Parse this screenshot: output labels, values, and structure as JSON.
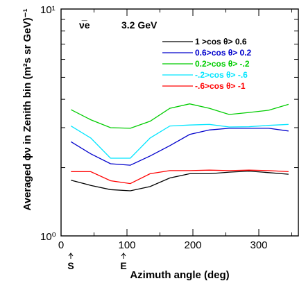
{
  "chart_data": {
    "type": "line",
    "title": "3.2 GeV",
    "flavor": "ν̅e",
    "xlabel": "Azimuth angle (deg)",
    "ylabel": "Averaged ϕν in Zenith bin  (m²s sr GeV)⁻¹",
    "xlim": [
      0,
      360
    ],
    "ylim": [
      1,
      10
    ],
    "yscale": "log",
    "grid": false,
    "legend_position": "top-right",
    "x_ticks": [
      "0",
      "100",
      "200",
      "300"
    ],
    "y_ticks": [
      "10⁰",
      "10¹"
    ],
    "markers": [
      {
        "x": 15,
        "label": "S"
      },
      {
        "x": 105,
        "label": "E"
      }
    ],
    "x": [
      15,
      45,
      75,
      105,
      135,
      165,
      195,
      225,
      255,
      285,
      315,
      345
    ],
    "series": [
      {
        "name": "1 >cos  θ> 0.6",
        "color": "#000000",
        "values": [
          1.76,
          1.67,
          1.6,
          1.58,
          1.65,
          1.8,
          1.88,
          1.88,
          1.91,
          1.93,
          1.9,
          1.87
        ]
      },
      {
        "name": "0.6>cos  θ> 0.2",
        "color": "#0000cc",
        "values": [
          2.6,
          2.3,
          2.08,
          2.05,
          2.25,
          2.5,
          2.8,
          2.93,
          2.98,
          2.98,
          2.98,
          2.9
        ]
      },
      {
        "name": "0.2>cos  θ> -.2",
        "color": "#00cc00",
        "values": [
          3.6,
          3.25,
          3.0,
          2.98,
          3.2,
          3.65,
          3.82,
          3.65,
          3.43,
          3.5,
          3.58,
          3.8
        ]
      },
      {
        "name": "-.2>cos  θ> -.6",
        "color": "#00e5ff",
        "values": [
          3.05,
          2.7,
          2.2,
          2.2,
          2.7,
          3.05,
          3.08,
          3.1,
          3.02,
          3.03,
          3.07,
          3.1
        ]
      },
      {
        "name": "-.6>cos  θ> -1",
        "color": "#ff0000",
        "values": [
          1.92,
          1.92,
          1.75,
          1.7,
          1.88,
          1.94,
          1.94,
          1.95,
          1.94,
          1.95,
          1.94,
          1.92
        ]
      }
    ]
  }
}
